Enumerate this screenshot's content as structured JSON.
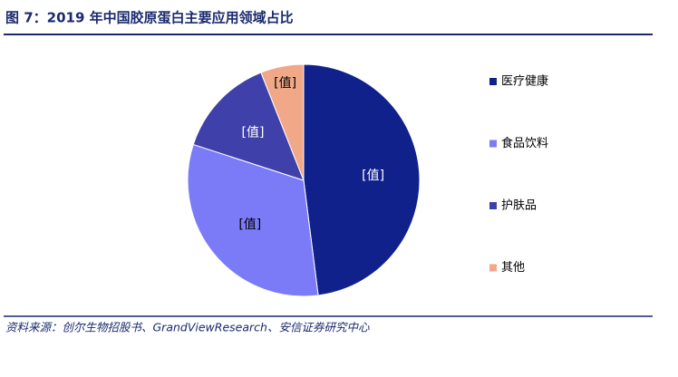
{
  "chart_data": {
    "type": "pie",
    "title": "图 7：2019 年中国胶原蛋白主要应用领域占比",
    "source": "资料来源：创尔生物招股书、GrandViewResearch、安信证券研究中心",
    "categories": [
      "医疗健康",
      "食品饮料",
      "护肤品",
      "其他"
    ],
    "values": [
      48,
      32,
      14,
      6
    ],
    "value_labels": [
      "[值]",
      "[值]",
      "[值]",
      "[值]"
    ],
    "colors": [
      "#10218b",
      "#7b7bf7",
      "#4040aa",
      "#f0a888"
    ],
    "label_colors": [
      "#ffffff",
      "#000000",
      "#ffffff",
      "#000000"
    ],
    "legend": "right"
  }
}
